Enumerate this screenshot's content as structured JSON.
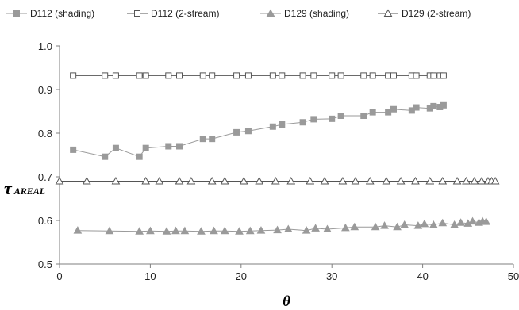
{
  "chart_data": {
    "type": "line",
    "xlabel": "θ",
    "ylabel_main": "τ",
    "ylabel_sub": "AREAL",
    "xlim": [
      0,
      50
    ],
    "ylim": [
      0.5,
      1.0
    ],
    "x_ticks": [
      "0",
      "10",
      "20",
      "30",
      "40",
      "50"
    ],
    "y_ticks": [
      "0.5",
      "0.6",
      "0.7",
      "0.8",
      "0.9",
      "1.0"
    ],
    "grid": false,
    "legend_position": "top",
    "series": [
      {
        "name": "D112 (shading)",
        "marker": "square-filled",
        "color": "#9a9a9a",
        "points": [
          [
            1.5,
            0.762
          ],
          [
            5,
            0.746
          ],
          [
            6.2,
            0.766
          ],
          [
            8.8,
            0.746
          ],
          [
            9.5,
            0.766
          ],
          [
            12,
            0.77
          ],
          [
            13.2,
            0.77
          ],
          [
            15.8,
            0.787
          ],
          [
            16.8,
            0.787
          ],
          [
            19.5,
            0.802
          ],
          [
            20.8,
            0.805
          ],
          [
            23.5,
            0.815
          ],
          [
            24.5,
            0.82
          ],
          [
            26.8,
            0.825
          ],
          [
            28,
            0.832
          ],
          [
            30,
            0.833
          ],
          [
            31,
            0.84
          ],
          [
            33.5,
            0.84
          ],
          [
            34.5,
            0.848
          ],
          [
            36.2,
            0.848
          ],
          [
            36.8,
            0.855
          ],
          [
            38.8,
            0.852
          ],
          [
            39.3,
            0.859
          ],
          [
            40.8,
            0.857
          ],
          [
            41.2,
            0.862
          ],
          [
            41.9,
            0.86
          ],
          [
            42.3,
            0.864
          ]
        ]
      },
      {
        "name": "D112 (2-stream)",
        "marker": "square-open",
        "color": "#555555",
        "points": [
          [
            1.5,
            0.932
          ],
          [
            5,
            0.932
          ],
          [
            6.2,
            0.932
          ],
          [
            8.8,
            0.932
          ],
          [
            9.5,
            0.932
          ],
          [
            12,
            0.932
          ],
          [
            13.2,
            0.932
          ],
          [
            15.8,
            0.932
          ],
          [
            16.8,
            0.932
          ],
          [
            19.5,
            0.932
          ],
          [
            20.8,
            0.932
          ],
          [
            23.5,
            0.932
          ],
          [
            24.5,
            0.932
          ],
          [
            26.8,
            0.932
          ],
          [
            28,
            0.932
          ],
          [
            30,
            0.932
          ],
          [
            31,
            0.932
          ],
          [
            33.5,
            0.932
          ],
          [
            34.5,
            0.932
          ],
          [
            36.2,
            0.932
          ],
          [
            36.8,
            0.932
          ],
          [
            38.8,
            0.932
          ],
          [
            39.3,
            0.932
          ],
          [
            40.8,
            0.932
          ],
          [
            41.2,
            0.932
          ],
          [
            41.9,
            0.932
          ],
          [
            42.3,
            0.932
          ]
        ]
      },
      {
        "name": "D129 (shading)",
        "marker": "triangle-filled",
        "color": "#9a9a9a",
        "points": [
          [
            2,
            0.577
          ],
          [
            5.5,
            0.576
          ],
          [
            8.8,
            0.575
          ],
          [
            10,
            0.576
          ],
          [
            11.8,
            0.575
          ],
          [
            12.8,
            0.576
          ],
          [
            13.8,
            0.576
          ],
          [
            15.6,
            0.575
          ],
          [
            17,
            0.576
          ],
          [
            18.2,
            0.576
          ],
          [
            19.8,
            0.575
          ],
          [
            21,
            0.576
          ],
          [
            22.2,
            0.577
          ],
          [
            24,
            0.578
          ],
          [
            25.2,
            0.58
          ],
          [
            27.2,
            0.577
          ],
          [
            28.2,
            0.582
          ],
          [
            29.5,
            0.58
          ],
          [
            31.5,
            0.583
          ],
          [
            32.5,
            0.585
          ],
          [
            34.8,
            0.585
          ],
          [
            35.8,
            0.588
          ],
          [
            37.2,
            0.585
          ],
          [
            38,
            0.59
          ],
          [
            39.5,
            0.588
          ],
          [
            40.2,
            0.592
          ],
          [
            41.2,
            0.59
          ],
          [
            42.2,
            0.594
          ],
          [
            43.5,
            0.59
          ],
          [
            44.2,
            0.595
          ],
          [
            45,
            0.593
          ],
          [
            45.5,
            0.598
          ],
          [
            46.2,
            0.595
          ],
          [
            46.6,
            0.598
          ],
          [
            47,
            0.597
          ]
        ]
      },
      {
        "name": "D129 (2-stream)",
        "marker": "triangle-open",
        "color": "#555555",
        "points": [
          [
            0,
            0.69
          ],
          [
            3,
            0.69
          ],
          [
            6.2,
            0.69
          ],
          [
            9.5,
            0.69
          ],
          [
            11,
            0.69
          ],
          [
            13.2,
            0.69
          ],
          [
            14.5,
            0.69
          ],
          [
            16.8,
            0.69
          ],
          [
            18.2,
            0.69
          ],
          [
            20.3,
            0.69
          ],
          [
            22,
            0.69
          ],
          [
            23.8,
            0.69
          ],
          [
            25.5,
            0.69
          ],
          [
            27.6,
            0.69
          ],
          [
            29.2,
            0.69
          ],
          [
            31.2,
            0.69
          ],
          [
            32.6,
            0.69
          ],
          [
            34.2,
            0.69
          ],
          [
            36,
            0.69
          ],
          [
            37.6,
            0.69
          ],
          [
            39.2,
            0.69
          ],
          [
            40.8,
            0.69
          ],
          [
            42.2,
            0.69
          ],
          [
            43.8,
            0.69
          ],
          [
            44.8,
            0.69
          ],
          [
            45.7,
            0.69
          ],
          [
            46.5,
            0.69
          ],
          [
            47.2,
            0.69
          ],
          [
            47.6,
            0.69
          ],
          [
            48,
            0.69
          ]
        ]
      }
    ]
  }
}
